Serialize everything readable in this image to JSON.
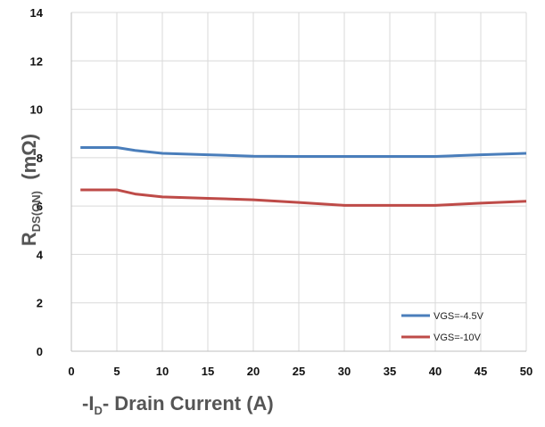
{
  "chart_data": {
    "type": "line",
    "xlabel_parts": {
      "prefix": "-I",
      "sub": "D",
      "suffix": "- Drain Current (A)"
    },
    "ylabel_parts": {
      "main": "R",
      "sub": "DS(ON)",
      "suffix": "  (mΩ)"
    },
    "xlim": [
      0,
      50
    ],
    "ylim": [
      0,
      14
    ],
    "x_ticks": [
      0,
      5,
      10,
      15,
      20,
      25,
      30,
      35,
      40,
      45,
      50
    ],
    "y_ticks": [
      0,
      2,
      4,
      6,
      8,
      10,
      12,
      14
    ],
    "grid": true,
    "legend_position": "bottom-right",
    "series": [
      {
        "name": "VGS=-4.5V",
        "color": "#4a7ebb",
        "x": [
          1,
          5,
          7,
          10,
          15,
          20,
          25,
          30,
          35,
          40,
          45,
          50
        ],
        "y": [
          8.42,
          8.42,
          8.3,
          8.18,
          8.12,
          8.06,
          8.05,
          8.05,
          8.05,
          8.05,
          8.12,
          8.18
        ]
      },
      {
        "name": "VGS=-10V",
        "color": "#be4b48",
        "x": [
          1,
          5,
          7,
          10,
          15,
          20,
          25,
          30,
          35,
          40,
          45,
          50
        ],
        "y": [
          6.67,
          6.67,
          6.5,
          6.38,
          6.32,
          6.26,
          6.15,
          6.03,
          6.03,
          6.03,
          6.12,
          6.2
        ]
      }
    ]
  }
}
